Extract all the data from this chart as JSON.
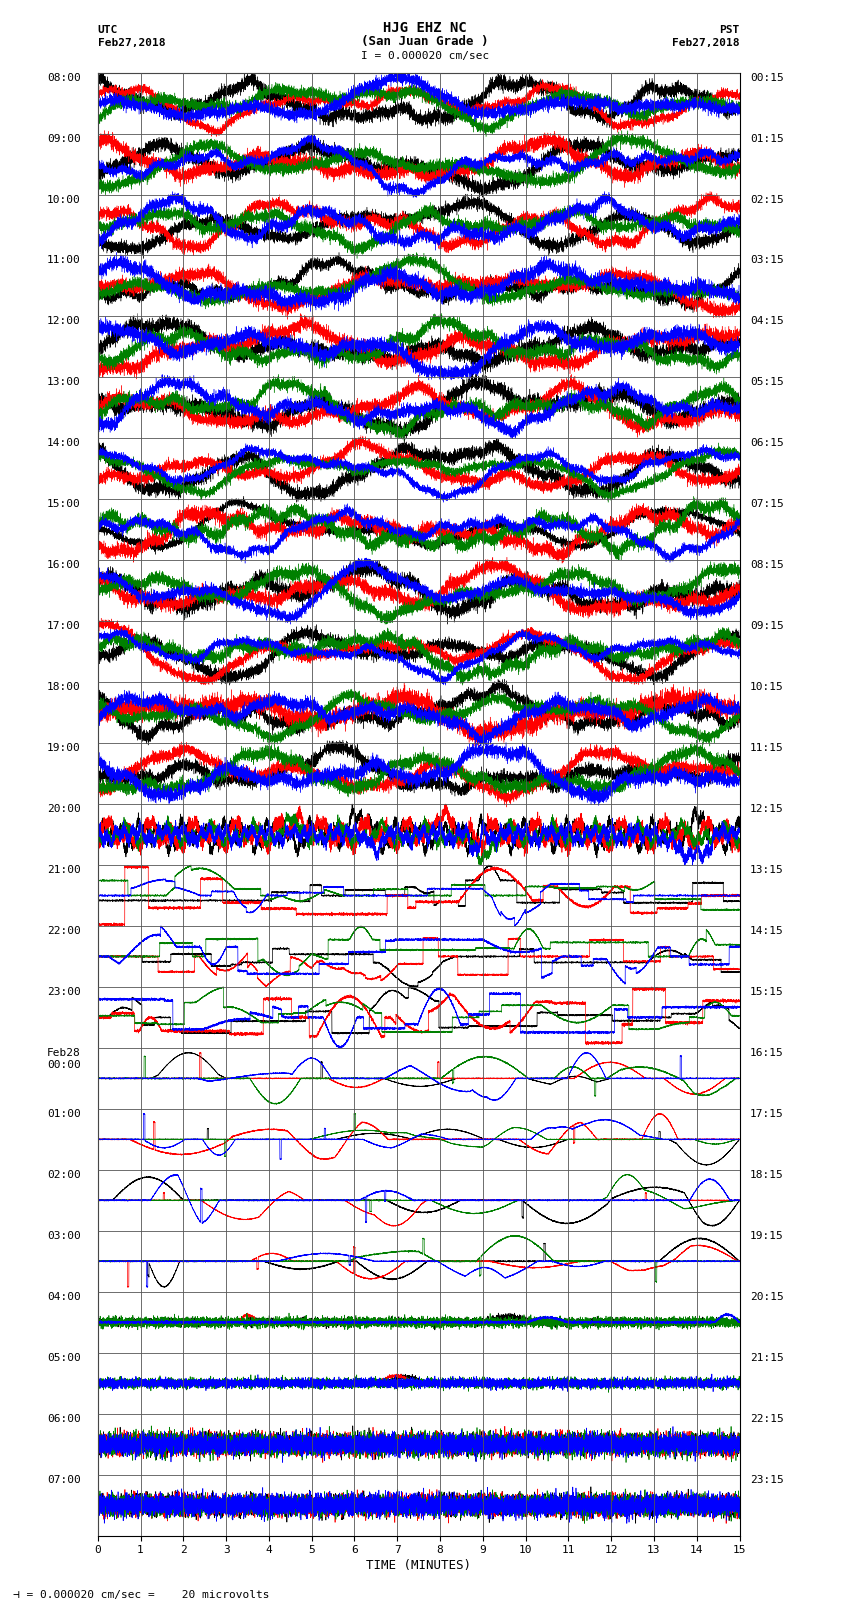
{
  "title_line1": "HJG EHZ NC",
  "title_line2": "(San Juan Grade )",
  "scale_label": "I = 0.000020 cm/sec",
  "utc_label": "UTC",
  "utc_date": "Feb27,2018",
  "pst_label": "PST",
  "pst_date": "Feb27,2018",
  "xlabel": "TIME (MINUTES)",
  "bottom_label": "= 0.000020 cm/sec =    20 microvolts",
  "xlim": [
    0,
    15
  ],
  "background_color": "#ffffff",
  "grid_color": "#555555",
  "utc_times": [
    "08:00",
    "09:00",
    "10:00",
    "11:00",
    "12:00",
    "13:00",
    "14:00",
    "15:00",
    "16:00",
    "17:00",
    "18:00",
    "19:00",
    "20:00",
    "21:00",
    "22:00",
    "23:00",
    "Feb28\n00:00",
    "01:00",
    "02:00",
    "03:00",
    "04:00",
    "05:00",
    "06:00",
    "07:00"
  ],
  "pst_times": [
    "00:15",
    "01:15",
    "02:15",
    "03:15",
    "04:15",
    "05:15",
    "06:15",
    "07:15",
    "08:15",
    "09:15",
    "10:15",
    "11:15",
    "12:15",
    "13:15",
    "14:15",
    "15:15",
    "16:15",
    "17:15",
    "18:15",
    "19:15",
    "20:15",
    "21:15",
    "22:15",
    "23:15"
  ],
  "n_rows": 24,
  "color_black": "#000000",
  "color_red": "#ff0000",
  "color_green": "#008000",
  "color_blue": "#0000ff",
  "title_fontsize": 10,
  "label_fontsize": 8,
  "tick_fontsize": 8,
  "figsize": [
    8.5,
    16.13
  ],
  "dpi": 100
}
